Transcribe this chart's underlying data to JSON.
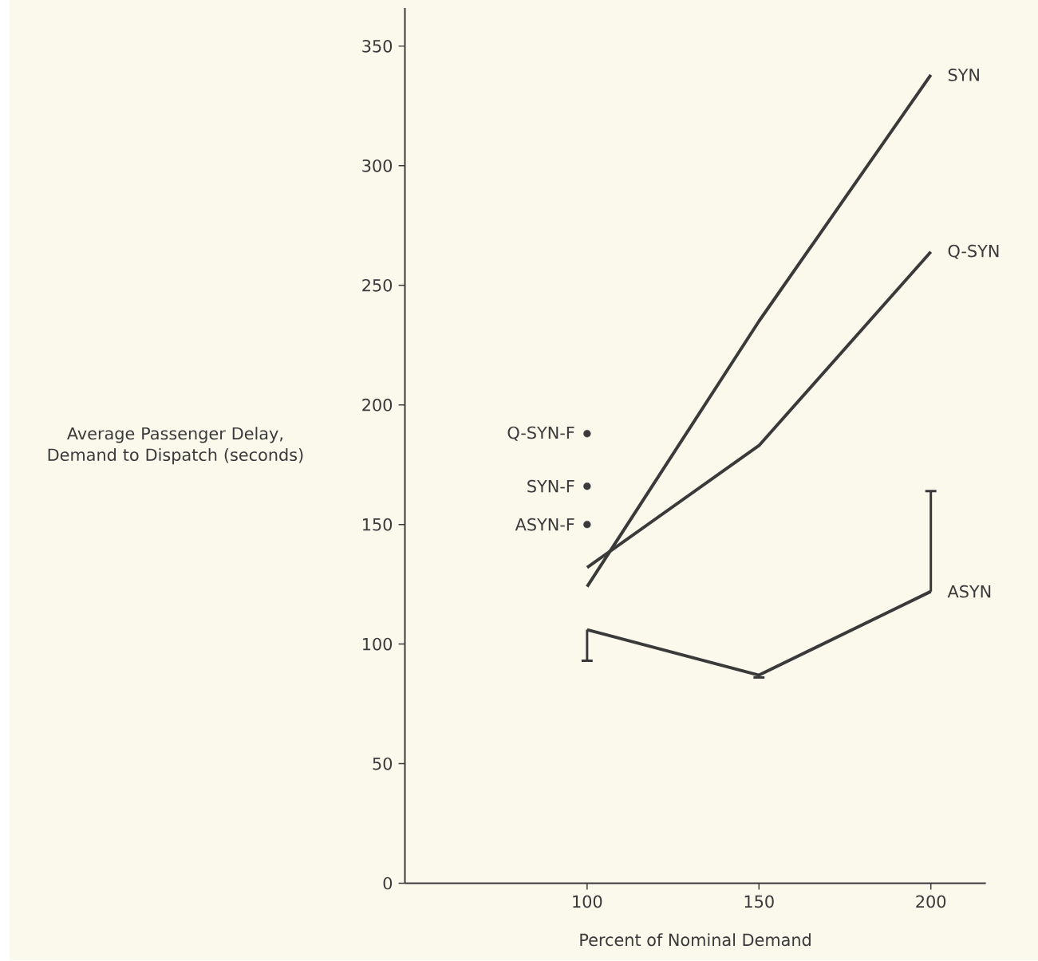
{
  "chart_data": {
    "type": "line",
    "xlabel": "Percent of Nominal Demand",
    "ylabel": "Average Passenger Delay, Demand to Dispatch (seconds)",
    "xlim": [
      47,
      216
    ],
    "ylim": [
      0,
      366
    ],
    "xticks": [
      100,
      150,
      200
    ],
    "yticks": [
      0,
      50,
      100,
      150,
      200,
      250,
      300,
      350
    ],
    "grid": false,
    "legend": false,
    "line_style": "solid",
    "series": [
      {
        "name": "SYN",
        "color": "#3a3a3a",
        "x": [
          100,
          150,
          200
        ],
        "values": [
          124,
          235,
          338
        ]
      },
      {
        "name": "Q-SYN",
        "color": "#3a3a3a",
        "x": [
          100,
          150,
          200
        ],
        "values": [
          132,
          183,
          264
        ]
      },
      {
        "name": "ASYN",
        "color": "#3a3a3a",
        "x": [
          100,
          150,
          200
        ],
        "values": [
          106,
          87,
          122
        ],
        "errors": [
          [
            93,
            106
          ],
          [
            86,
            87
          ],
          [
            122,
            164
          ]
        ]
      },
      {
        "name": "Q-SYN-F",
        "type": "scatter",
        "color": "#3a3a3a",
        "x": [
          100
        ],
        "values": [
          188
        ]
      },
      {
        "name": "SYN-F",
        "type": "scatter",
        "color": "#3a3a3a",
        "x": [
          100
        ],
        "values": [
          166
        ]
      },
      {
        "name": "ASYN-F",
        "type": "scatter",
        "color": "#3a3a3a",
        "x": [
          100
        ],
        "values": [
          150
        ]
      }
    ]
  }
}
